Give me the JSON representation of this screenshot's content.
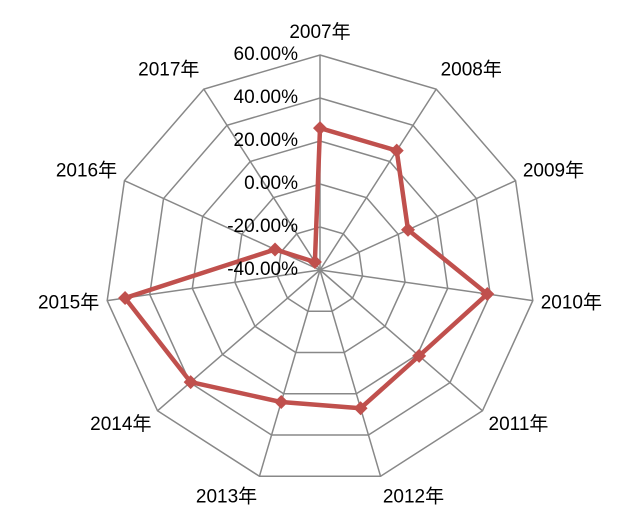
{
  "chart_data": {
    "type": "radar",
    "categories": [
      "2007年",
      "2008年",
      "2009年",
      "2010年",
      "2011年",
      "2012年",
      "2013年",
      "2014年",
      "2015年",
      "2016年",
      "2017年"
    ],
    "series": [
      {
        "color": "#c0504d",
        "values": [
          26,
          26,
          5,
          38.6,
          21,
          27,
          24,
          39.6,
          51.6,
          -17,
          -35.6
        ]
      }
    ],
    "ylim": [
      -40,
      60
    ],
    "yticks": [
      {
        "value": -40,
        "label": "-40.00%"
      },
      {
        "value": -20,
        "label": "-20.00%"
      },
      {
        "value": 0,
        "label": "0.00%"
      },
      {
        "value": 20,
        "label": "20.00%"
      },
      {
        "value": 40,
        "label": "40.00%"
      },
      {
        "value": 60,
        "label": "60.00%"
      }
    ],
    "grid": true
  }
}
